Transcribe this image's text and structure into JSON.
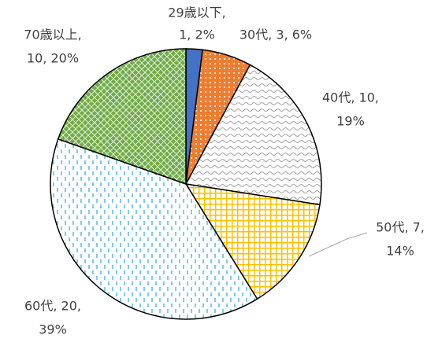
{
  "chart_data": {
    "type": "pie",
    "values": [
      1,
      3,
      10,
      7,
      20,
      10
    ],
    "value_labels": [
      [
        "29歳以下,",
        "1, 2%"
      ],
      [
        "30代, 3, 6%"
      ],
      [
        "40代, 10,",
        "19%"
      ],
      [
        "50代, 7,",
        "14%"
      ],
      [
        "60代, 20,",
        "39%"
      ],
      [
        "70歳以上,",
        "10, 20%"
      ]
    ],
    "colors": [
      "#4472c4",
      "#ed7d31",
      "#a5a5a5",
      "#ffc000",
      "#5bc0e8",
      "#70ad47"
    ]
  }
}
